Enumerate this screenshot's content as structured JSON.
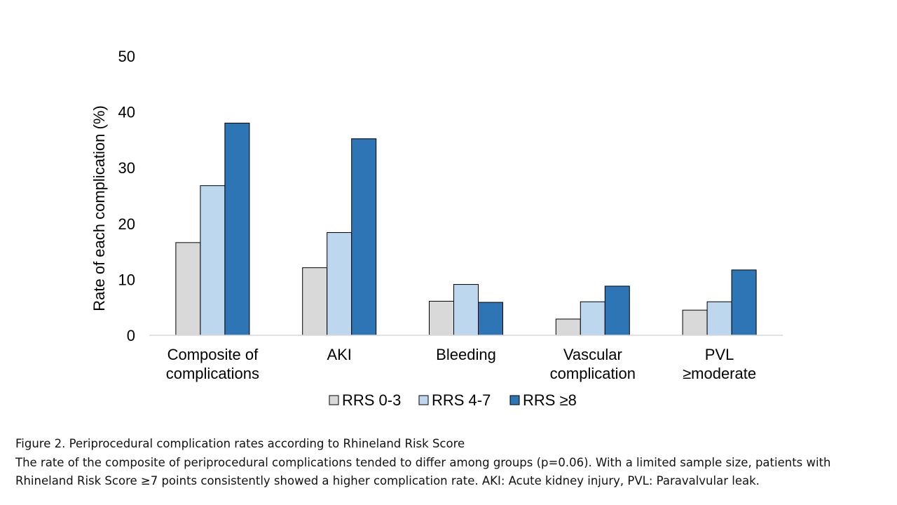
{
  "chart_data": {
    "type": "bar",
    "ylabel": "Rate of each complication (%)",
    "ylim": [
      0,
      50
    ],
    "yticks": [
      0,
      10,
      20,
      30,
      40,
      50
    ],
    "grid": false,
    "legend_position": "bottom",
    "categories": [
      [
        "Composite of",
        "complications"
      ],
      [
        "AKI"
      ],
      [
        "Bleeding"
      ],
      [
        "Vascular",
        "complication"
      ],
      [
        "PVL",
        "≥moderate"
      ]
    ],
    "series": [
      {
        "name": "RRS 0-3",
        "color": "#d9d9d9",
        "values": [
          16.6,
          12.1,
          6.1,
          2.9,
          4.5
        ]
      },
      {
        "name": "RRS 4-7",
        "color": "#bdd7ee",
        "values": [
          26.8,
          18.4,
          9.1,
          6.0,
          6.0
        ]
      },
      {
        "name": "RRS ≥8",
        "color": "#2e75b6",
        "values": [
          38.0,
          35.2,
          5.9,
          8.8,
          11.7
        ]
      }
    ]
  },
  "caption": {
    "title": "Figure 2. Periprocedural complication rates according to Rhineland Risk Score",
    "line1": "The rate of the composite of periprocedural complications tended to differ among groups (p=0.06). With a limited sample size, patients with",
    "line2": "Rhineland Risk Score ≥7 points consistently showed a higher complication rate. AKI: Acute kidney injury, PVL: Paravalvular leak."
  }
}
